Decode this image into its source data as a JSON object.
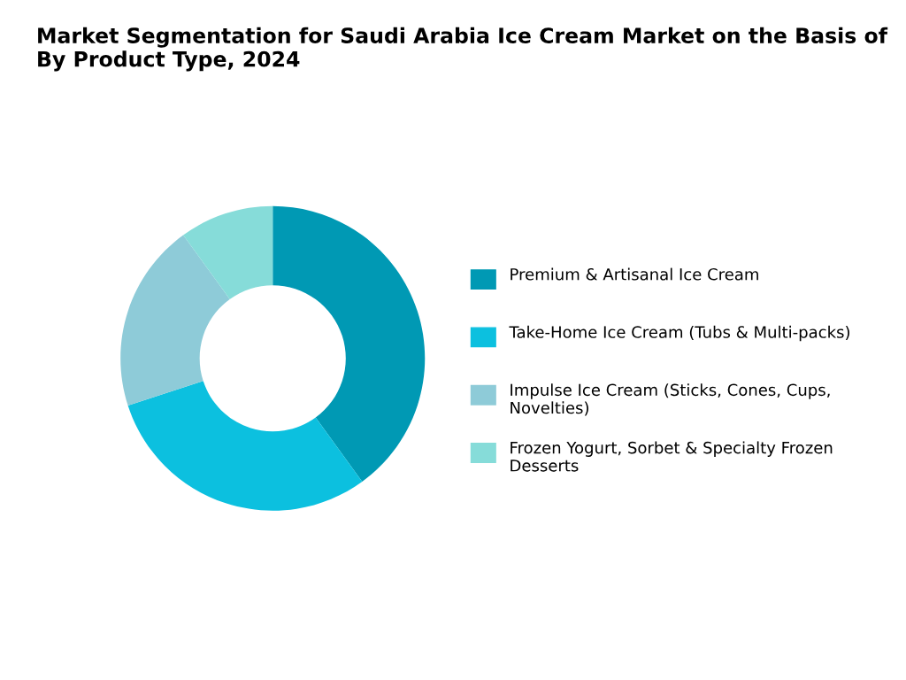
{
  "chart_data": {
    "type": "donut",
    "title": "Market Segmentation for Saudi Arabia Ice Cream Market on the Basis of  By Product Type, 2024",
    "categories": [
      "Premium & Artisanal Ice Cream",
      "Take-Home Ice Cream (Tubs & Multi-packs)",
      "Impulse Ice Cream (Sticks, Cones, Cups, Novelties)",
      "Frozen Yogurt, Sorbet & Specialty Frozen Desserts"
    ],
    "values": [
      40,
      30,
      20,
      10
    ],
    "colors": [
      "#0099b4",
      "#0cc0df",
      "#8ecbd8",
      "#86dcd9"
    ],
    "legend": "right"
  }
}
